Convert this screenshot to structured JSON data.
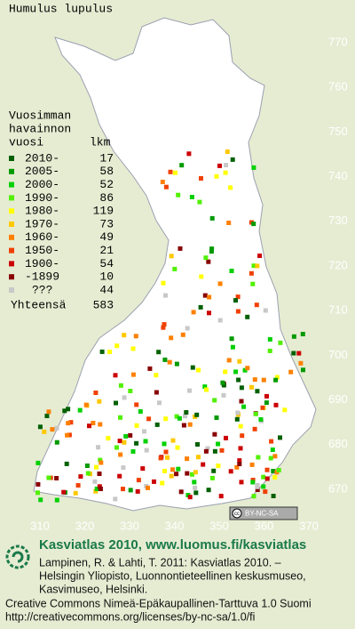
{
  "title": "Humulus lupulus",
  "legend": {
    "heading_lines": [
      "Vuosimman",
      "havainnon",
      "vuosi"
    ],
    "count_heading": "lkm",
    "entries": [
      {
        "label": "2010-",
        "count": 17,
        "color": "#006000"
      },
      {
        "label": "2005-",
        "count": 58,
        "color": "#009a00"
      },
      {
        "label": "2000-",
        "count": 52,
        "color": "#00d000"
      },
      {
        "label": "1990-",
        "count": 86,
        "color": "#50f000"
      },
      {
        "label": "1980-",
        "count": 119,
        "color": "#ffff00"
      },
      {
        "label": "1970-",
        "count": 73,
        "color": "#ffc800"
      },
      {
        "label": "1960-",
        "count": 49,
        "color": "#ff8000"
      },
      {
        "label": "1950-",
        "count": 21,
        "color": "#f04000"
      },
      {
        "label": "1900-",
        "count": 54,
        "color": "#cc0000"
      },
      {
        "label": "-1899",
        "count": 10,
        "color": "#880000"
      },
      {
        "label": "???",
        "count": 44,
        "color": "#c8c8c8"
      }
    ],
    "total_label": "Yhteensä",
    "total": 583
  },
  "grid": {
    "y_labels": [
      770,
      760,
      750,
      740,
      730,
      720,
      710,
      700,
      690,
      680,
      670
    ],
    "x_labels": [
      310,
      320,
      330,
      340,
      350,
      360,
      370
    ]
  },
  "license_badge": {
    "cc": "cc",
    "text": "BY-NC-SA"
  },
  "footer": {
    "site": "Kasviatlas 2010, www.luomus.fi/kasviatlas",
    "citation_lines": [
      "Lampinen, R. & Lahti, T. 2011: Kasviatlas 2010. –",
      "Helsingin Yliopisto, Luonnontieteellinen keskusmuseo,",
      "Kasvimuseo, Helsinki."
    ],
    "license_lines": [
      "Creative Commons Nimeä-Epäkaupallinen-Tarttuva 1.0 Suomi",
      "http://creativecommons.org/licenses/by-nc-sa/1.0/fi"
    ]
  }
}
